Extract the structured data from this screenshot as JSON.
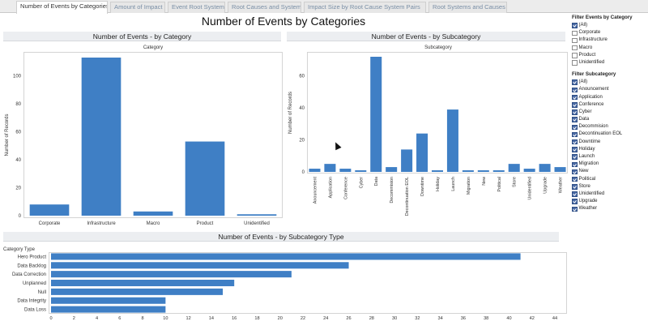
{
  "tabs": [
    {
      "label": "Number of Events by Categories",
      "active": true
    },
    {
      "label": "Amount of Impact"
    },
    {
      "label": "Event Root System"
    },
    {
      "label": "Root Causes and Systems"
    },
    {
      "label": "Impact Size by Root Cause System Pairs"
    },
    {
      "label": "Root Systems and Causes"
    }
  ],
  "dashboard_title": "Number of Events by Categories",
  "colors": {
    "bar": "#3f7fc5",
    "accent_check": "#4a6aa4"
  },
  "filters": {
    "category": {
      "title": "Filter Events by Category",
      "options": [
        {
          "label": "(All)",
          "checked": true
        },
        {
          "label": "Corporate",
          "checked": false
        },
        {
          "label": "Infrastructure",
          "checked": false
        },
        {
          "label": "Macro",
          "checked": false
        },
        {
          "label": "Product",
          "checked": false
        },
        {
          "label": "Unidentified",
          "checked": false
        }
      ]
    },
    "subcategory": {
      "title": "Filter Subcategory",
      "options": [
        {
          "label": "(All)",
          "checked": true
        },
        {
          "label": "Anouncement",
          "checked": true
        },
        {
          "label": "Application",
          "checked": true
        },
        {
          "label": "Conference",
          "checked": true
        },
        {
          "label": "Cyber",
          "checked": true
        },
        {
          "label": "Data",
          "checked": true
        },
        {
          "label": "Decommision",
          "checked": true
        },
        {
          "label": "Decontinuation EOL",
          "checked": true
        },
        {
          "label": "Downtime",
          "checked": true
        },
        {
          "label": "Holiday",
          "checked": true
        },
        {
          "label": "Launch",
          "checked": true
        },
        {
          "label": "Migration",
          "checked": true
        },
        {
          "label": "New",
          "checked": true
        },
        {
          "label": "Political",
          "checked": true
        },
        {
          "label": "Store",
          "checked": true
        },
        {
          "label": "Unidentified",
          "checked": true
        },
        {
          "label": "Upgrade",
          "checked": true
        },
        {
          "label": "Weather",
          "checked": true
        }
      ]
    }
  },
  "chart_data": [
    {
      "type": "bar",
      "title": "Number of Events - by Category",
      "header": "Category",
      "ylabel": "Number of Records",
      "categories": [
        "Corporate",
        "Infrastructure",
        "Macro",
        "Product",
        "Unidentified"
      ],
      "values": [
        8,
        113,
        3,
        53,
        1
      ],
      "ylim": [
        0,
        113
      ],
      "yticks": [
        0,
        20,
        40,
        60,
        80,
        100
      ],
      "grid": false
    },
    {
      "type": "bar",
      "title": "Number of Events - by Subcategory",
      "header": "Subcategory",
      "ylabel": "Number of Records",
      "categories": [
        "Anouncement",
        "Application",
        "Conference",
        "Cyber",
        "Data",
        "Decommision",
        "Decontinuation EOL",
        "Downtime",
        "Holiday",
        "Launch",
        "Migration",
        "New",
        "Political",
        "Store",
        "Unidentified",
        "Upgrade",
        "Weather"
      ],
      "values": [
        2,
        5,
        2,
        1,
        72,
        3,
        14,
        24,
        1,
        39,
        1,
        1,
        1,
        5,
        2,
        5,
        3
      ],
      "ylim": [
        0,
        72
      ],
      "yticks": [
        0,
        20,
        40,
        60
      ],
      "grid": false
    },
    {
      "type": "bar",
      "orientation": "horizontal",
      "title": "Number of Events - by Subcategory Type",
      "header": "Category Type",
      "categories": [
        "Hero Product",
        "Data Backlog",
        "Data Correction",
        "Unplanned",
        "Null",
        "Data Integrity",
        "Data Loss"
      ],
      "values": [
        41,
        26,
        21,
        16,
        15,
        10,
        10
      ],
      "xlim": [
        0,
        44
      ],
      "xticks": [
        0,
        2,
        4,
        6,
        8,
        10,
        12,
        14,
        16,
        18,
        20,
        22,
        24,
        26,
        28,
        30,
        32,
        34,
        36,
        38,
        40,
        42,
        44
      ],
      "grid": false
    }
  ]
}
